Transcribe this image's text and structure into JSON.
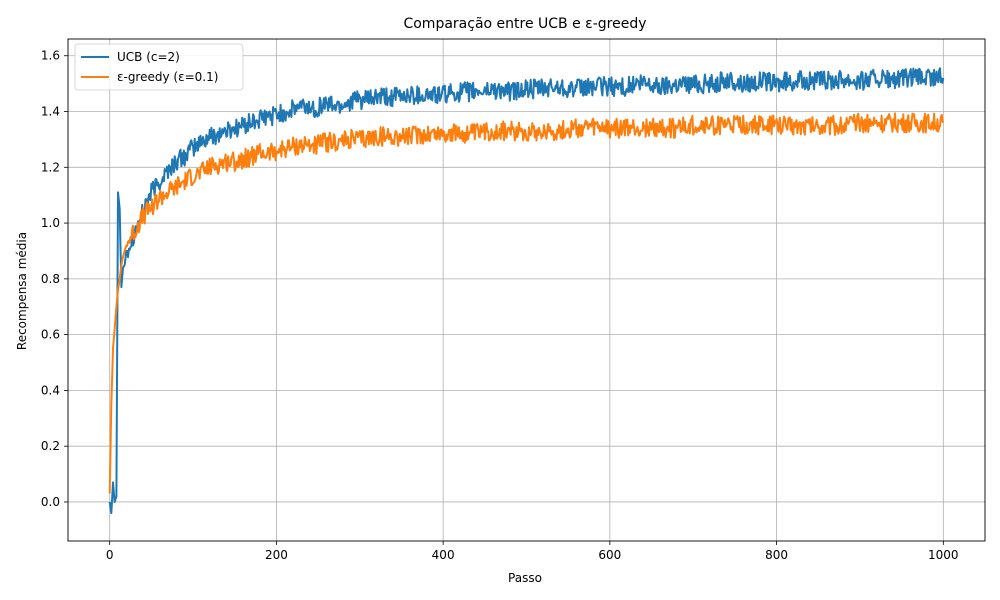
{
  "chart_data": {
    "type": "line",
    "title": "Comparação entre UCB e ε-greedy",
    "xlabel": "Passo",
    "ylabel": "Recompensa média",
    "xlim": [
      -50,
      1050
    ],
    "ylim": [
      -0.14,
      1.66
    ],
    "x_ticks": [
      0,
      200,
      400,
      600,
      800,
      1000
    ],
    "y_ticks": [
      0.0,
      0.2,
      0.4,
      0.6,
      0.8,
      1.0,
      1.2,
      1.4,
      1.6
    ],
    "grid": true,
    "legend_position": "top-left",
    "series": [
      {
        "name": "UCB (c=2)",
        "color": "#1f77b4",
        "x": [
          0,
          2,
          4,
          6,
          8,
          10,
          12,
          14,
          16,
          18,
          20,
          25,
          30,
          35,
          40,
          45,
          50,
          60,
          70,
          80,
          90,
          100,
          110,
          120,
          130,
          140,
          150,
          160,
          170,
          180,
          190,
          200,
          215,
          230,
          245,
          260,
          275,
          290,
          305,
          320,
          340,
          360,
          380,
          400,
          420,
          440,
          460,
          480,
          500,
          520,
          540,
          560,
          580,
          600,
          620,
          640,
          660,
          680,
          700,
          720,
          740,
          760,
          780,
          800,
          820,
          840,
          860,
          880,
          900,
          920,
          940,
          960,
          980,
          1000
        ],
        "y": [
          0.0,
          -0.04,
          0.07,
          0.0,
          0.02,
          1.11,
          1.05,
          0.77,
          0.84,
          0.85,
          0.9,
          0.93,
          0.97,
          1.0,
          1.04,
          1.08,
          1.11,
          1.15,
          1.19,
          1.22,
          1.24,
          1.27,
          1.29,
          1.31,
          1.32,
          1.33,
          1.34,
          1.35,
          1.36,
          1.37,
          1.38,
          1.39,
          1.4,
          1.42,
          1.41,
          1.43,
          1.42,
          1.44,
          1.44,
          1.45,
          1.45,
          1.46,
          1.46,
          1.46,
          1.47,
          1.47,
          1.48,
          1.47,
          1.48,
          1.48,
          1.49,
          1.48,
          1.49,
          1.49,
          1.49,
          1.5,
          1.49,
          1.5,
          1.5,
          1.5,
          1.51,
          1.5,
          1.51,
          1.5,
          1.51,
          1.51,
          1.51,
          1.52,
          1.51,
          1.52,
          1.51,
          1.52,
          1.52,
          1.52
        ]
      },
      {
        "name": "ε-greedy (ε=0.1)",
        "color": "#ff7f0e",
        "x": [
          0,
          2,
          4,
          6,
          8,
          10,
          12,
          14,
          16,
          18,
          20,
          25,
          30,
          35,
          40,
          45,
          50,
          60,
          70,
          80,
          90,
          100,
          110,
          120,
          130,
          140,
          150,
          160,
          170,
          180,
          190,
          200,
          215,
          230,
          245,
          260,
          275,
          290,
          305,
          320,
          340,
          360,
          380,
          400,
          420,
          440,
          460,
          480,
          500,
          520,
          540,
          560,
          580,
          600,
          620,
          640,
          660,
          680,
          700,
          720,
          740,
          760,
          780,
          800,
          820,
          840,
          860,
          880,
          900,
          920,
          940,
          960,
          980,
          1000
        ],
        "y": [
          0.03,
          0.35,
          0.55,
          0.62,
          0.7,
          0.76,
          0.8,
          0.85,
          0.88,
          0.9,
          0.92,
          0.95,
          0.97,
          1.0,
          1.02,
          1.04,
          1.06,
          1.09,
          1.11,
          1.13,
          1.15,
          1.17,
          1.18,
          1.2,
          1.21,
          1.22,
          1.22,
          1.23,
          1.24,
          1.25,
          1.25,
          1.26,
          1.27,
          1.28,
          1.28,
          1.29,
          1.29,
          1.3,
          1.3,
          1.31,
          1.31,
          1.31,
          1.32,
          1.32,
          1.32,
          1.32,
          1.33,
          1.33,
          1.33,
          1.33,
          1.33,
          1.34,
          1.34,
          1.34,
          1.34,
          1.34,
          1.34,
          1.34,
          1.35,
          1.35,
          1.35,
          1.35,
          1.35,
          1.35,
          1.35,
          1.35,
          1.35,
          1.35,
          1.36,
          1.36,
          1.36,
          1.36,
          1.36,
          1.36
        ]
      }
    ]
  }
}
